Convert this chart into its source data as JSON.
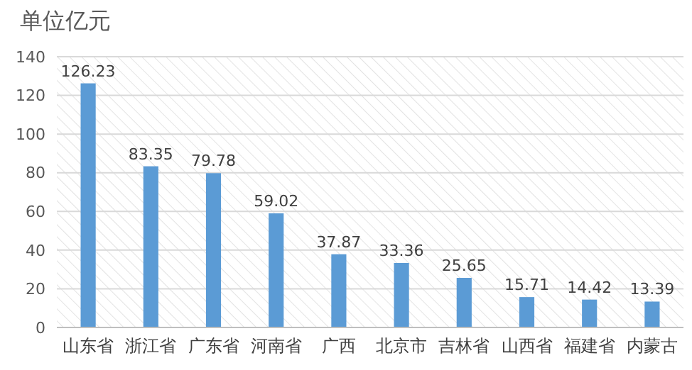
{
  "chart_data": {
    "type": "bar",
    "title": "单位亿元",
    "categories": [
      "山东省",
      "浙江省",
      "广东省",
      "河南省",
      "广西",
      "北京市",
      "吉林省",
      "山西省",
      "福建省",
      "内蒙古"
    ],
    "values": [
      126.23,
      83.35,
      79.78,
      59.02,
      37.87,
      33.36,
      25.65,
      15.71,
      14.42,
      13.39
    ],
    "color": "#5b9bd5",
    "ylim": [
      0,
      140
    ],
    "yticks": [
      0,
      20,
      40,
      60,
      80,
      100,
      120,
      140
    ],
    "grid": "y",
    "data_labels": true
  }
}
